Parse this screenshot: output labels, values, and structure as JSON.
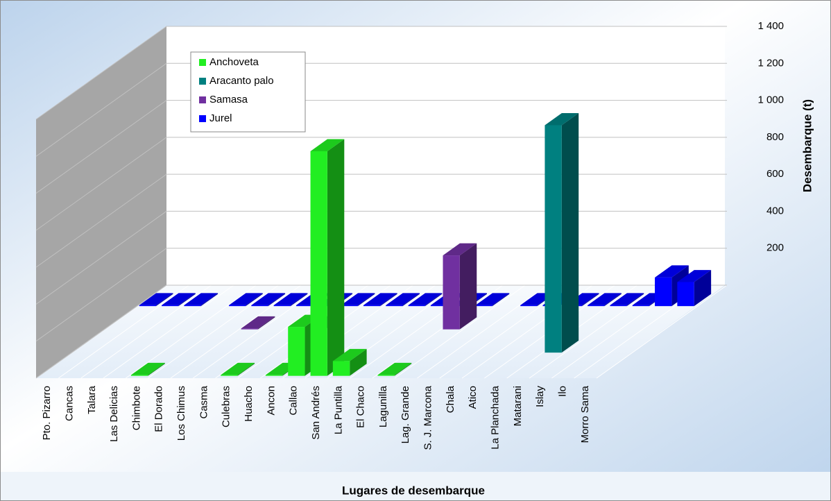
{
  "chart_data": {
    "type": "bar3d",
    "x_label": "Lugares de desembarque",
    "y_label": "Desembarque (t)",
    "categories": [
      "Pto. Pizarro",
      "Cancas",
      "Talara",
      "Las Delicias",
      "Chimbote",
      "El Dorado",
      "Los Chimus",
      "Casma",
      "Culebras",
      "Huacho",
      "Ancon",
      "Callao",
      "San Andrés",
      "La Puntilla",
      "El Chaco",
      "Lagunilla",
      "Lag. Grande",
      "S. J. Marcona",
      "Chala",
      "Atico",
      "La Planchada",
      "Matarani",
      "Islay",
      "Ilo",
      "Morro Sama"
    ],
    "series": [
      {
        "name": "Anchoveta",
        "color": "#22ee22",
        "values": [
          null,
          null,
          null,
          null,
          5,
          null,
          null,
          null,
          5,
          null,
          5,
          265,
          1215,
          80,
          null,
          5,
          null,
          null,
          null,
          null,
          null,
          null,
          null,
          null,
          null
        ]
      },
      {
        "name": "Aracanto palo",
        "color": "#008080",
        "values": [
          null,
          null,
          null,
          null,
          null,
          null,
          null,
          null,
          null,
          null,
          null,
          null,
          null,
          null,
          null,
          null,
          null,
          null,
          null,
          null,
          null,
          1230,
          null,
          null,
          null
        ]
      },
      {
        "name": "Samasa",
        "color": "#7030a0",
        "values": [
          null,
          null,
          null,
          null,
          null,
          null,
          5,
          null,
          null,
          5,
          null,
          null,
          null,
          null,
          null,
          400,
          null,
          null,
          null,
          null,
          null,
          null,
          null,
          null,
          null
        ]
      },
      {
        "name": "Jurel",
        "color": "#0000ff",
        "values": [
          5,
          5,
          5,
          null,
          5,
          5,
          5,
          5,
          5,
          5,
          5,
          5,
          5,
          5,
          5,
          5,
          null,
          5,
          5,
          5,
          5,
          5,
          5,
          155,
          130
        ]
      }
    ],
    "ylim": [
      0,
      1400
    ],
    "yticks": [
      200,
      400,
      600,
      800,
      {
        "value": 1000,
        "label": "1 000"
      },
      {
        "value": 1200,
        "label": "1 200"
      },
      {
        "value": 1400,
        "label": "1 400"
      }
    ],
    "grid": true,
    "legend": "top-left"
  }
}
